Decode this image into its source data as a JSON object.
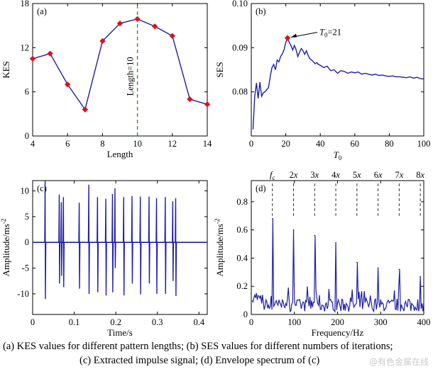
{
  "captions": {
    "line1": "(a) KES values for different pattern lengths; (b) SES values for different numbers of iterations;",
    "line2": "(c) Extracted impulse signal; (d) Envelope spectrum of (c)"
  },
  "watermark": "@有色金属在线",
  "chart_data": [
    {
      "panel": "(a)",
      "type": "line",
      "xlabel": "Length",
      "ylabel": "KES",
      "xlim": [
        4,
        14
      ],
      "ylim": [
        0,
        18
      ],
      "xticks": [
        4,
        6,
        8,
        10,
        12,
        14
      ],
      "yticks": [
        0,
        6,
        12,
        18
      ],
      "x": [
        4,
        5,
        6,
        7,
        8,
        9,
        10,
        11,
        12,
        13,
        14
      ],
      "y": [
        10.5,
        11.2,
        7.0,
        3.6,
        12.9,
        15.3,
        15.9,
        14.9,
        13.6,
        5.0,
        4.3
      ],
      "line_color": "#1f1fa8",
      "marker_color": "#e0101a",
      "vline": {
        "x": 10,
        "label": "Length=10",
        "color": "#2a9a2a"
      }
    },
    {
      "panel": "(b)",
      "type": "line",
      "xlabel": "T0",
      "ylabel": "SES",
      "xlim": [
        0,
        100
      ],
      "ylim": [
        0.07,
        0.1
      ],
      "xticks": [
        0,
        20,
        40,
        60,
        80,
        100
      ],
      "yticks": [
        0.08,
        0.09,
        0.1
      ],
      "ytick_labels": [
        "0.08",
        "0.09",
        "0.10"
      ],
      "x": [
        1,
        2,
        3,
        4,
        5,
        6,
        7,
        8,
        9,
        10,
        11,
        12,
        13,
        14,
        15,
        16,
        17,
        18,
        19,
        20,
        21,
        22,
        23,
        24,
        25,
        26,
        27,
        28,
        29,
        30,
        31,
        32,
        33,
        34,
        35,
        36,
        37,
        38,
        39,
        40,
        42,
        44,
        46,
        48,
        50,
        52,
        54,
        56,
        58,
        60,
        62,
        64,
        66,
        68,
        70,
        72,
        74,
        76,
        78,
        80,
        82,
        84,
        86,
        88,
        90,
        92,
        94,
        96,
        98,
        100
      ],
      "y": [
        0.0715,
        0.079,
        0.082,
        0.0785,
        0.0822,
        0.079,
        0.0798,
        0.08,
        0.0805,
        0.081,
        0.0835,
        0.0855,
        0.0862,
        0.085,
        0.0872,
        0.0868,
        0.088,
        0.0886,
        0.0895,
        0.0912,
        0.0922,
        0.0912,
        0.0905,
        0.0895,
        0.0905,
        0.0895,
        0.088,
        0.089,
        0.0898,
        0.0893,
        0.0885,
        0.0893,
        0.0882,
        0.0875,
        0.0872,
        0.0868,
        0.0864,
        0.0866,
        0.0862,
        0.086,
        0.0855,
        0.0858,
        0.0848,
        0.085,
        0.0842,
        0.0848,
        0.0846,
        0.0842,
        0.0845,
        0.0843,
        0.0845,
        0.084,
        0.0842,
        0.084,
        0.0838,
        0.084,
        0.0837,
        0.0838,
        0.0836,
        0.0835,
        0.0836,
        0.0834,
        0.0834,
        0.0833,
        0.0832,
        0.0834,
        0.0831,
        0.0833,
        0.083,
        0.0829
      ],
      "line_color": "#1f1fa8",
      "peak": {
        "x": 21,
        "y": 0.0922,
        "label": "T0=21",
        "marker_color": "#e0101a"
      }
    },
    {
      "panel": "(c)",
      "type": "line",
      "xlabel": "Time/s",
      "ylabel": "Amplitude/ms-2",
      "xlim": [
        0,
        0.42
      ],
      "ylim": [
        -14,
        12
      ],
      "xticks": [
        0,
        0.1,
        0.2,
        0.3,
        0.4
      ],
      "xtick_labels": [
        "0",
        "0.1",
        "0.2",
        "0.3",
        "0.4"
      ],
      "yticks": [
        -10,
        -5,
        0,
        5,
        10
      ],
      "line_color": "#1f1fa8",
      "impulses": [
        {
          "t": 0.03,
          "up": 12.0,
          "down": -11.0
        },
        {
          "t": 0.064,
          "up": 9.3,
          "down": -8.0
        },
        {
          "t": 0.069,
          "up": 7.8,
          "down": -6.5
        },
        {
          "t": 0.074,
          "up": 8.8,
          "down": -8.7
        },
        {
          "t": 0.112,
          "up": 7.7,
          "down": -9.0
        },
        {
          "t": 0.135,
          "up": 11.2,
          "down": -10.0
        },
        {
          "t": 0.156,
          "up": 8.8,
          "down": -9.7
        },
        {
          "t": 0.176,
          "up": 8.5,
          "down": -10.3
        },
        {
          "t": 0.192,
          "up": 9.4,
          "down": -9.7
        },
        {
          "t": 0.198,
          "up": 10.5,
          "down": -5.0
        },
        {
          "t": 0.219,
          "up": 8.8,
          "down": -10.3
        },
        {
          "t": 0.239,
          "up": 9.0,
          "down": -8.0
        },
        {
          "t": 0.259,
          "up": 8.9,
          "down": -10.1
        },
        {
          "t": 0.28,
          "up": 8.9,
          "down": -8.0
        },
        {
          "t": 0.298,
          "up": 8.6,
          "down": -10.0
        },
        {
          "t": 0.319,
          "up": 8.8,
          "down": -10.0
        },
        {
          "t": 0.337,
          "up": 8.0,
          "down": -7.5
        },
        {
          "t": 0.344,
          "up": 8.6,
          "down": -10.4
        }
      ]
    },
    {
      "panel": "(d)",
      "type": "line",
      "xlabel": "Frequency/Hz",
      "ylabel": "Amplitude/ms-2",
      "xlim": [
        0,
        400
      ],
      "ylim": [
        0,
        0.95
      ],
      "xticks": [
        0,
        100,
        200,
        300,
        400
      ],
      "yticks": [
        0,
        0.2,
        0.4,
        0.6,
        0.8
      ],
      "ytick_labels": [
        "0",
        "0.2",
        "0.4",
        "0.6",
        "0.8"
      ],
      "line_color": "#1f1fa8",
      "harmonics": [
        {
          "label": "fc",
          "f": 49
        },
        {
          "label": "2x",
          "f": 98
        },
        {
          "label": "3x",
          "f": 147
        },
        {
          "label": "4x",
          "f": 196
        },
        {
          "label": "5x",
          "f": 245
        },
        {
          "label": "6x",
          "f": 294
        },
        {
          "label": "7x",
          "f": 343
        },
        {
          "label": "8x",
          "f": 392
        }
      ],
      "peaks": [
        {
          "f": 49,
          "a": 0.68
        },
        {
          "f": 98,
          "a": 0.6
        },
        {
          "f": 147,
          "a": 0.56
        },
        {
          "f": 196,
          "a": 0.51
        },
        {
          "f": 245,
          "a": 0.37
        },
        {
          "f": 294,
          "a": 0.33
        },
        {
          "f": 343,
          "a": 0.32
        },
        {
          "f": 392,
          "a": 0.27
        }
      ],
      "noise_level": 0.09
    }
  ]
}
